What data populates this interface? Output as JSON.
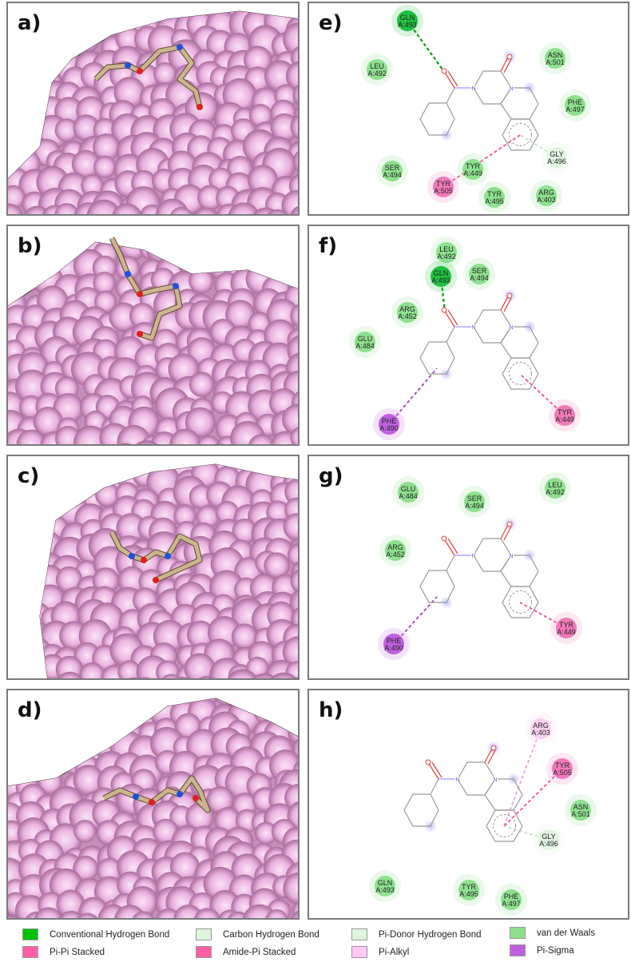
{
  "panels_3d": [
    {
      "label": "a)"
    },
    {
      "label": "b)"
    },
    {
      "label": "c)"
    },
    {
      "label": "d)"
    }
  ],
  "panels_2d": [
    {
      "label": "e)",
      "residues": [
        {
          "name": "GLN",
          "id": "A:493",
          "type": "conventional_hbond"
        },
        {
          "name": "LEU",
          "id": "A:492",
          "type": "vdw"
        },
        {
          "name": "ASN",
          "id": "A:501",
          "type": "vdw"
        },
        {
          "name": "PHE",
          "id": "A:497",
          "type": "vdw"
        },
        {
          "name": "GLY",
          "id": "A:496",
          "type": "pi_donor_hbond"
        },
        {
          "name": "SER",
          "id": "A:494",
          "type": "vdw"
        },
        {
          "name": "TYR",
          "id": "A:449",
          "type": "vdw"
        },
        {
          "name": "TYR",
          "id": "A:505",
          "type": "pi_pi_stacked"
        },
        {
          "name": "TYR",
          "id": "A:495",
          "type": "vdw"
        },
        {
          "name": "ARG",
          "id": "A:403",
          "type": "vdw"
        }
      ]
    },
    {
      "label": "f)",
      "residues": [
        {
          "name": "LEU",
          "id": "A:492",
          "type": "vdw"
        },
        {
          "name": "GLN",
          "id": "A:493",
          "type": "conventional_hbond"
        },
        {
          "name": "SER",
          "id": "A:494",
          "type": "vdw"
        },
        {
          "name": "ARG",
          "id": "A:452",
          "type": "vdw"
        },
        {
          "name": "GLU",
          "id": "A:484",
          "type": "vdw"
        },
        {
          "name": "PHE",
          "id": "A:490",
          "type": "pi_sigma"
        },
        {
          "name": "TYR",
          "id": "A:449",
          "type": "pi_pi_stacked"
        }
      ]
    },
    {
      "label": "g)",
      "residues": [
        {
          "name": "GLU",
          "id": "A:484",
          "type": "vdw"
        },
        {
          "name": "SER",
          "id": "A:494",
          "type": "vdw"
        },
        {
          "name": "LEU",
          "id": "A:492",
          "type": "vdw"
        },
        {
          "name": "ARG",
          "id": "A:452",
          "type": "vdw"
        },
        {
          "name": "PHE",
          "id": "A:490",
          "type": "pi_sigma"
        },
        {
          "name": "TYR",
          "id": "A:449",
          "type": "pi_pi_stacked"
        }
      ]
    },
    {
      "label": "h)",
      "residues": [
        {
          "name": "ARG",
          "id": "A:403",
          "type": "pi_alkyl"
        },
        {
          "name": "TYR",
          "id": "A:505",
          "type": "pi_pi_stacked"
        },
        {
          "name": "ASN",
          "id": "A:501",
          "type": "vdw"
        },
        {
          "name": "GLY",
          "id": "A:496",
          "type": "pi_donor_hbond"
        },
        {
          "name": "GLN",
          "id": "A:493",
          "type": "vdw"
        },
        {
          "name": "TYR",
          "id": "A:495",
          "type": "vdw"
        },
        {
          "name": "PHE",
          "id": "A:497",
          "type": "vdw"
        }
      ]
    }
  ],
  "legend": [
    {
      "key": "conventional_hbond",
      "label": "Conventional Hydrogen Bond",
      "color": "#00c000"
    },
    {
      "key": "carbon_hbond",
      "label": "Carbon Hydrogen Bond",
      "color": "#dcf5dc"
    },
    {
      "key": "pi_donor_hbond",
      "label": "Pi-Donor Hydrogen Bond",
      "color": "#dcf5dc"
    },
    {
      "key": "vdw",
      "label": "van der Waals",
      "color": "#8ee08e"
    },
    {
      "key": "pi_pi_stacked",
      "label": "Pi-Pi Stacked",
      "color": "#ff5fa8"
    },
    {
      "key": "amide_pi_stacked",
      "label": "Amide-Pi Stacked",
      "color": "#ff5fa8"
    },
    {
      "key": "pi_alkyl",
      "label": "Pi-Alkyl",
      "color": "#ffc8f5"
    },
    {
      "key": "pi_sigma",
      "label": "Pi-Sigma",
      "color": "#c060e0"
    }
  ],
  "colors": {
    "surface": "#e9b3df",
    "ligand": "#cbb48e",
    "nitrogen": "#2050e0",
    "oxygen": "#e02020"
  }
}
